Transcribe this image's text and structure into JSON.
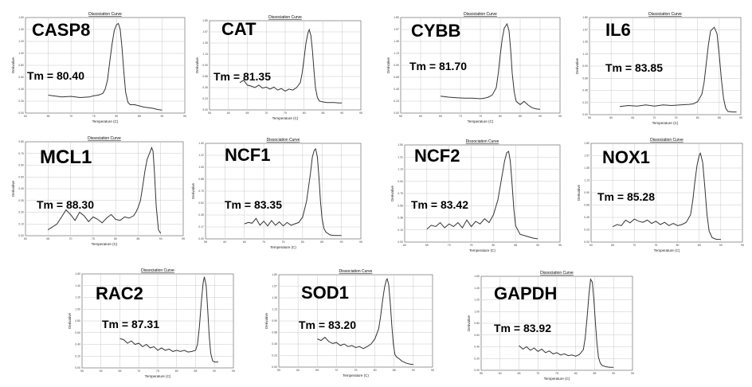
{
  "chart_data": [
    {
      "type": "line",
      "gene": "CASP8",
      "tm": "Tm = 80.40",
      "title": "Dissociation Curve",
      "xlabel": "Temperature (C)",
      "ylabel": "Derivative",
      "x": [
        65,
        68,
        70,
        72,
        74,
        75,
        76,
        77,
        77.5,
        78,
        78.5,
        79,
        79.5,
        80,
        80.4,
        80.8,
        81.2,
        81.6,
        82,
        82.5,
        83,
        84,
        85,
        86,
        87,
        88,
        89,
        90
      ],
      "y": [
        0.3,
        0.27,
        0.28,
        0.26,
        0.27,
        0.29,
        0.3,
        0.33,
        0.4,
        0.55,
        0.85,
        1.15,
        1.38,
        1.48,
        1.5,
        1.4,
        1.1,
        0.7,
        0.35,
        0.18,
        0.14,
        0.14,
        0.12,
        0.1,
        0.09,
        0.08,
        0.06,
        0.05
      ],
      "xlim": [
        60,
        95
      ],
      "ylim": [
        0,
        1.6
      ]
    },
    {
      "type": "line",
      "gene": "CAT",
      "tm": "Tm = 81.35",
      "title": "Dissociation Curve",
      "xlabel": "Temperature (C)",
      "ylabel": "Derivative",
      "x": [
        63,
        64,
        65,
        66,
        67,
        68,
        69,
        70,
        71,
        72,
        73,
        74,
        75,
        76,
        77,
        78,
        79,
        79.5,
        80,
        80.5,
        81,
        81.35,
        81.8,
        82.2,
        82.6,
        83,
        83.5,
        84,
        85,
        86,
        87,
        88,
        89,
        90
      ],
      "y": [
        0.55,
        0.6,
        0.5,
        0.48,
        0.45,
        0.5,
        0.44,
        0.46,
        0.42,
        0.46,
        0.4,
        0.43,
        0.38,
        0.42,
        0.4,
        0.45,
        0.55,
        0.75,
        1.05,
        1.35,
        1.55,
        1.62,
        1.5,
        1.2,
        0.8,
        0.45,
        0.25,
        0.18,
        0.16,
        0.15,
        0.15,
        0.15,
        0.14,
        0.14
      ],
      "xlim": [
        55,
        95
      ],
      "ylim": [
        0,
        1.8
      ]
    },
    {
      "type": "line",
      "gene": "CYBB",
      "tm": "Tm = 81.70",
      "title": "Dissociation Curve",
      "xlabel": "Temperature (C)",
      "ylabel": "Derivative",
      "x": [
        65,
        67,
        69,
        71,
        73,
        75,
        76,
        77,
        78,
        79,
        79.5,
        80,
        80.5,
        81,
        81.7,
        82.2,
        82.6,
        83,
        83.5,
        84,
        85,
        86,
        87,
        88,
        89,
        90
      ],
      "y": [
        0.32,
        0.3,
        0.29,
        0.28,
        0.28,
        0.27,
        0.28,
        0.3,
        0.34,
        0.48,
        0.75,
        1.1,
        1.4,
        1.6,
        1.68,
        1.55,
        1.2,
        0.75,
        0.4,
        0.22,
        0.16,
        0.22,
        0.15,
        0.1,
        0.08,
        0.07
      ],
      "xlim": [
        55,
        95
      ],
      "ylim": [
        0,
        1.8
      ]
    },
    {
      "type": "line",
      "gene": "IL6",
      "tm": "Tm = 83.85",
      "title": "Dissociation Curve",
      "xlabel": "Temperature (C)",
      "ylabel": "Derivative",
      "x": [
        62,
        64,
        66,
        68,
        70,
        72,
        74,
        76,
        78,
        79,
        80,
        81,
        81.5,
        82,
        82.5,
        83,
        83.85,
        84.5,
        85,
        85.5,
        86,
        86.5,
        87,
        88,
        89
      ],
      "y": [
        0.15,
        0.17,
        0.16,
        0.18,
        0.16,
        0.18,
        0.17,
        0.18,
        0.19,
        0.2,
        0.24,
        0.38,
        0.6,
        0.95,
        1.3,
        1.55,
        1.62,
        1.5,
        1.1,
        0.65,
        0.3,
        0.12,
        0.06,
        0.05,
        0.05
      ],
      "xlim": [
        55,
        90
      ],
      "ylim": [
        0,
        1.8
      ]
    },
    {
      "type": "line",
      "gene": "MCL1",
      "tm": "Tm = 88.30",
      "title": "Dissociation Curve",
      "xlabel": "Temperature (C)",
      "ylabel": "Derivative",
      "x": [
        65,
        67,
        68,
        69,
        70,
        71,
        72,
        73,
        74,
        75,
        76,
        77,
        78,
        79,
        80,
        81,
        82,
        83,
        84,
        84.5,
        85,
        85.5,
        86,
        86.5,
        87,
        87.5,
        88,
        88.3,
        88.6,
        89,
        89.5,
        90
      ],
      "y": [
        0.05,
        0.1,
        0.16,
        0.22,
        0.18,
        0.13,
        0.2,
        0.17,
        0.12,
        0.16,
        0.14,
        0.11,
        0.15,
        0.18,
        0.14,
        0.13,
        0.16,
        0.15,
        0.17,
        0.2,
        0.24,
        0.3,
        0.42,
        0.55,
        0.65,
        0.7,
        0.75,
        0.72,
        0.55,
        0.25,
        0.05,
        0.02
      ],
      "xlim": [
        60,
        95
      ],
      "ylim": [
        0,
        0.8
      ]
    },
    {
      "type": "line",
      "gene": "NCF1",
      "tm": "Tm = 83.35",
      "title": "Dissociation Curve",
      "xlabel": "Temperature (C)",
      "ylabel": "Derivative",
      "x": [
        65,
        66,
        67,
        68,
        69,
        70,
        71,
        72,
        73,
        74,
        75,
        76,
        77,
        78,
        79,
        80,
        81,
        82,
        82.5,
        83,
        83.35,
        83.8,
        84.2,
        84.6,
        85,
        85.5,
        86,
        87,
        88,
        89,
        90
      ],
      "y": [
        0.22,
        0.24,
        0.23,
        0.3,
        0.2,
        0.26,
        0.19,
        0.27,
        0.2,
        0.25,
        0.19,
        0.24,
        0.2,
        0.22,
        0.24,
        0.32,
        0.55,
        0.95,
        1.2,
        1.3,
        1.32,
        1.2,
        0.9,
        0.55,
        0.3,
        0.15,
        0.1,
        0.06,
        0.05,
        0.05,
        0.05
      ],
      "xlim": [
        55,
        95
      ],
      "ylim": [
        0,
        1.4
      ]
    },
    {
      "type": "line",
      "gene": "NCF2",
      "tm": "Tm = 83.42",
      "title": "Dissociation Curve",
      "xlabel": "Temperature (C)",
      "ylabel": "Derivative",
      "x": [
        65,
        66,
        67,
        68,
        69,
        70,
        71,
        72,
        73,
        74,
        75,
        76,
        77,
        78,
        79,
        80,
        81,
        82,
        82.5,
        83,
        83.42,
        83.8,
        84.2,
        84.6,
        85,
        86,
        87,
        88,
        89,
        90
      ],
      "y": [
        0.2,
        0.26,
        0.24,
        0.3,
        0.22,
        0.28,
        0.24,
        0.3,
        0.22,
        0.34,
        0.24,
        0.32,
        0.28,
        0.36,
        0.3,
        0.42,
        0.65,
        1.05,
        1.25,
        1.38,
        1.4,
        1.25,
        0.9,
        0.5,
        0.25,
        0.12,
        0.1,
        0.08,
        0.06,
        0.05
      ],
      "xlim": [
        60,
        95
      ],
      "ylim": [
        0,
        1.5
      ]
    },
    {
      "type": "line",
      "gene": "NOX1",
      "tm": "Tm = 85.28",
      "title": "Dissociation Curve",
      "xlabel": "Temperature (C)",
      "ylabel": "Derivative",
      "x": [
        65,
        66,
        67,
        68,
        69,
        70,
        71,
        72,
        73,
        74,
        75,
        76,
        77,
        78,
        79,
        80,
        81,
        82,
        83,
        83.5,
        84,
        84.5,
        85,
        85.28,
        85.8,
        86.3,
        86.8,
        87.3,
        88,
        89,
        90
      ],
      "y": [
        0.28,
        0.32,
        0.3,
        0.4,
        0.35,
        0.42,
        0.38,
        0.36,
        0.4,
        0.34,
        0.38,
        0.32,
        0.36,
        0.3,
        0.34,
        0.3,
        0.32,
        0.36,
        0.5,
        0.75,
        1.1,
        1.4,
        1.58,
        1.62,
        1.45,
        1.0,
        0.5,
        0.2,
        0.08,
        0.05,
        0.05
      ],
      "xlim": [
        60,
        95
      ],
      "ylim": [
        0,
        1.8
      ]
    },
    {
      "type": "line",
      "gene": "RAC2",
      "tm": "Tm = 87.31",
      "title": "Dissociation Curve",
      "xlabel": "Temperature (C)",
      "ylabel": "Derivative",
      "x": [
        65,
        66,
        67,
        68,
        69,
        70,
        71,
        72,
        73,
        74,
        75,
        76,
        77,
        78,
        79,
        80,
        81,
        82,
        83,
        84,
        85,
        85.5,
        86,
        86.5,
        87,
        87.31,
        87.8,
        88.2,
        88.6,
        89,
        89.5,
        90,
        91
      ],
      "y": [
        0.5,
        0.48,
        0.42,
        0.46,
        0.4,
        0.42,
        0.36,
        0.4,
        0.34,
        0.36,
        0.3,
        0.34,
        0.3,
        0.32,
        0.28,
        0.3,
        0.28,
        0.3,
        0.27,
        0.28,
        0.3,
        0.4,
        0.7,
        1.1,
        1.45,
        1.55,
        1.4,
        1.0,
        0.55,
        0.25,
        0.12,
        0.1,
        0.1
      ],
      "xlim": [
        55,
        95
      ],
      "ylim": [
        0,
        1.6
      ]
    },
    {
      "type": "line",
      "gene": "SOD1",
      "tm": "Tm = 83.20",
      "title": "Dissociation Curve",
      "xlabel": "Temperature (C)",
      "ylabel": "Derivative",
      "x": [
        65,
        66,
        67,
        68,
        69,
        70,
        71,
        72,
        73,
        74,
        75,
        76,
        77,
        78,
        79,
        80,
        81,
        81.5,
        82,
        82.5,
        83,
        83.2,
        83.6,
        84,
        84.4,
        84.8,
        85.2,
        85.6,
        86,
        87,
        88,
        89,
        90
      ],
      "y": [
        0.55,
        0.52,
        0.58,
        0.5,
        0.46,
        0.48,
        0.42,
        0.45,
        0.4,
        0.42,
        0.38,
        0.4,
        0.36,
        0.4,
        0.45,
        0.55,
        0.75,
        1.0,
        1.3,
        1.55,
        1.7,
        1.72,
        1.6,
        1.25,
        0.8,
        0.45,
        0.25,
        0.2,
        0.18,
        0.12,
        0.08,
        0.06,
        0.05
      ],
      "xlim": [
        55,
        95
      ],
      "ylim": [
        0,
        1.8
      ]
    },
    {
      "type": "line",
      "gene": "GAPDH",
      "tm": "Tm = 83.92",
      "title": "Dissociation Curve",
      "xlabel": "Temperature (C)",
      "ylabel": "Derivative",
      "x": [
        65,
        66,
        67,
        68,
        69,
        70,
        71,
        72,
        73,
        74,
        75,
        76,
        77,
        78,
        79,
        80,
        81,
        82,
        82.5,
        83,
        83.5,
        83.92,
        84.4,
        84.8,
        85.2,
        85.6,
        86,
        86.5,
        87,
        88,
        89,
        90
      ],
      "y": [
        0.42,
        0.36,
        0.4,
        0.34,
        0.38,
        0.32,
        0.36,
        0.3,
        0.33,
        0.28,
        0.3,
        0.26,
        0.28,
        0.25,
        0.26,
        0.24,
        0.27,
        0.35,
        0.55,
        0.9,
        1.3,
        1.55,
        1.5,
        1.2,
        0.8,
        0.45,
        0.22,
        0.12,
        0.08,
        0.06,
        0.05,
        0.05
      ],
      "xlim": [
        55,
        95
      ],
      "ylim": [
        0,
        1.6
      ]
    }
  ]
}
